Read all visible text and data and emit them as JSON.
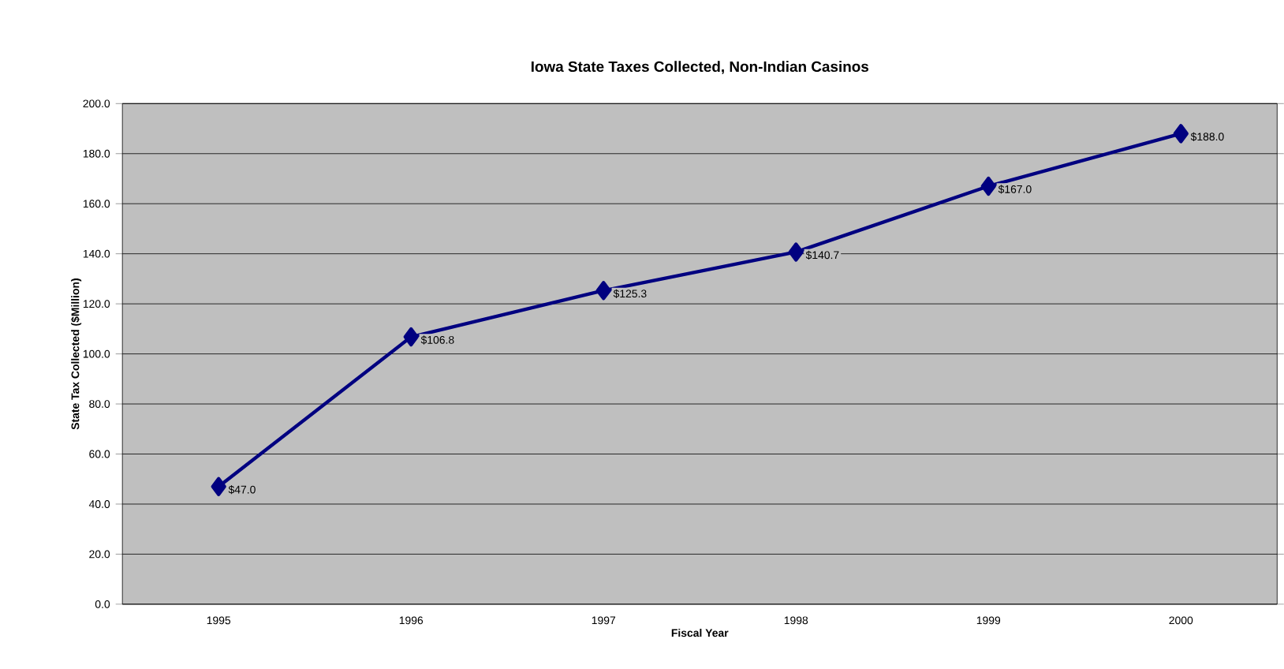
{
  "chart_data": {
    "type": "line",
    "title": "Iowa State Taxes Collected, Non-Indian Casinos",
    "xlabel": "Fiscal Year",
    "ylabel": "State Tax Collected  ($Million)",
    "categories": [
      "1995",
      "1996",
      "1997",
      "1998",
      "1999",
      "2000"
    ],
    "series": [
      {
        "color": "#000080",
        "values": [
          47.0,
          106.8,
          125.3,
          140.7,
          167.0,
          188.0
        ],
        "value_labels": [
          "$47.0",
          "$106.8",
          "$125.3",
          "$140.7",
          "$167.0",
          "$188.0"
        ]
      }
    ],
    "ylim": [
      0,
      200
    ],
    "yticks": [
      {
        "value": 0,
        "label": "0.0"
      },
      {
        "value": 20,
        "label": "20.0"
      },
      {
        "value": 40,
        "label": "40.0"
      },
      {
        "value": 60,
        "label": "60.0"
      },
      {
        "value": 80,
        "label": "80.0"
      },
      {
        "value": 100,
        "label": "100.0"
      },
      {
        "value": 120,
        "label": "120.0"
      },
      {
        "value": 140,
        "label": "140.0"
      },
      {
        "value": 160,
        "label": "160.0"
      },
      {
        "value": 180,
        "label": "180.0"
      },
      {
        "value": 200,
        "label": "200.0"
      }
    ],
    "grid": "y",
    "marker": "diamond",
    "line_style": "solid"
  }
}
